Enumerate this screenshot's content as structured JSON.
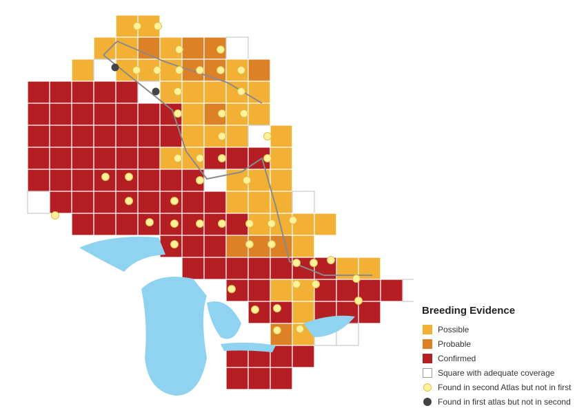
{
  "legend": {
    "title": "Breeding Evidence",
    "items": [
      {
        "label": "Possible"
      },
      {
        "label": "Probable"
      },
      {
        "label": "Confirmed"
      },
      {
        "label": "Square with adequate coverage"
      },
      {
        "label": "Found in second Atlas but not in first"
      },
      {
        "label": "Found in first atlas but not in second"
      }
    ]
  }
}
